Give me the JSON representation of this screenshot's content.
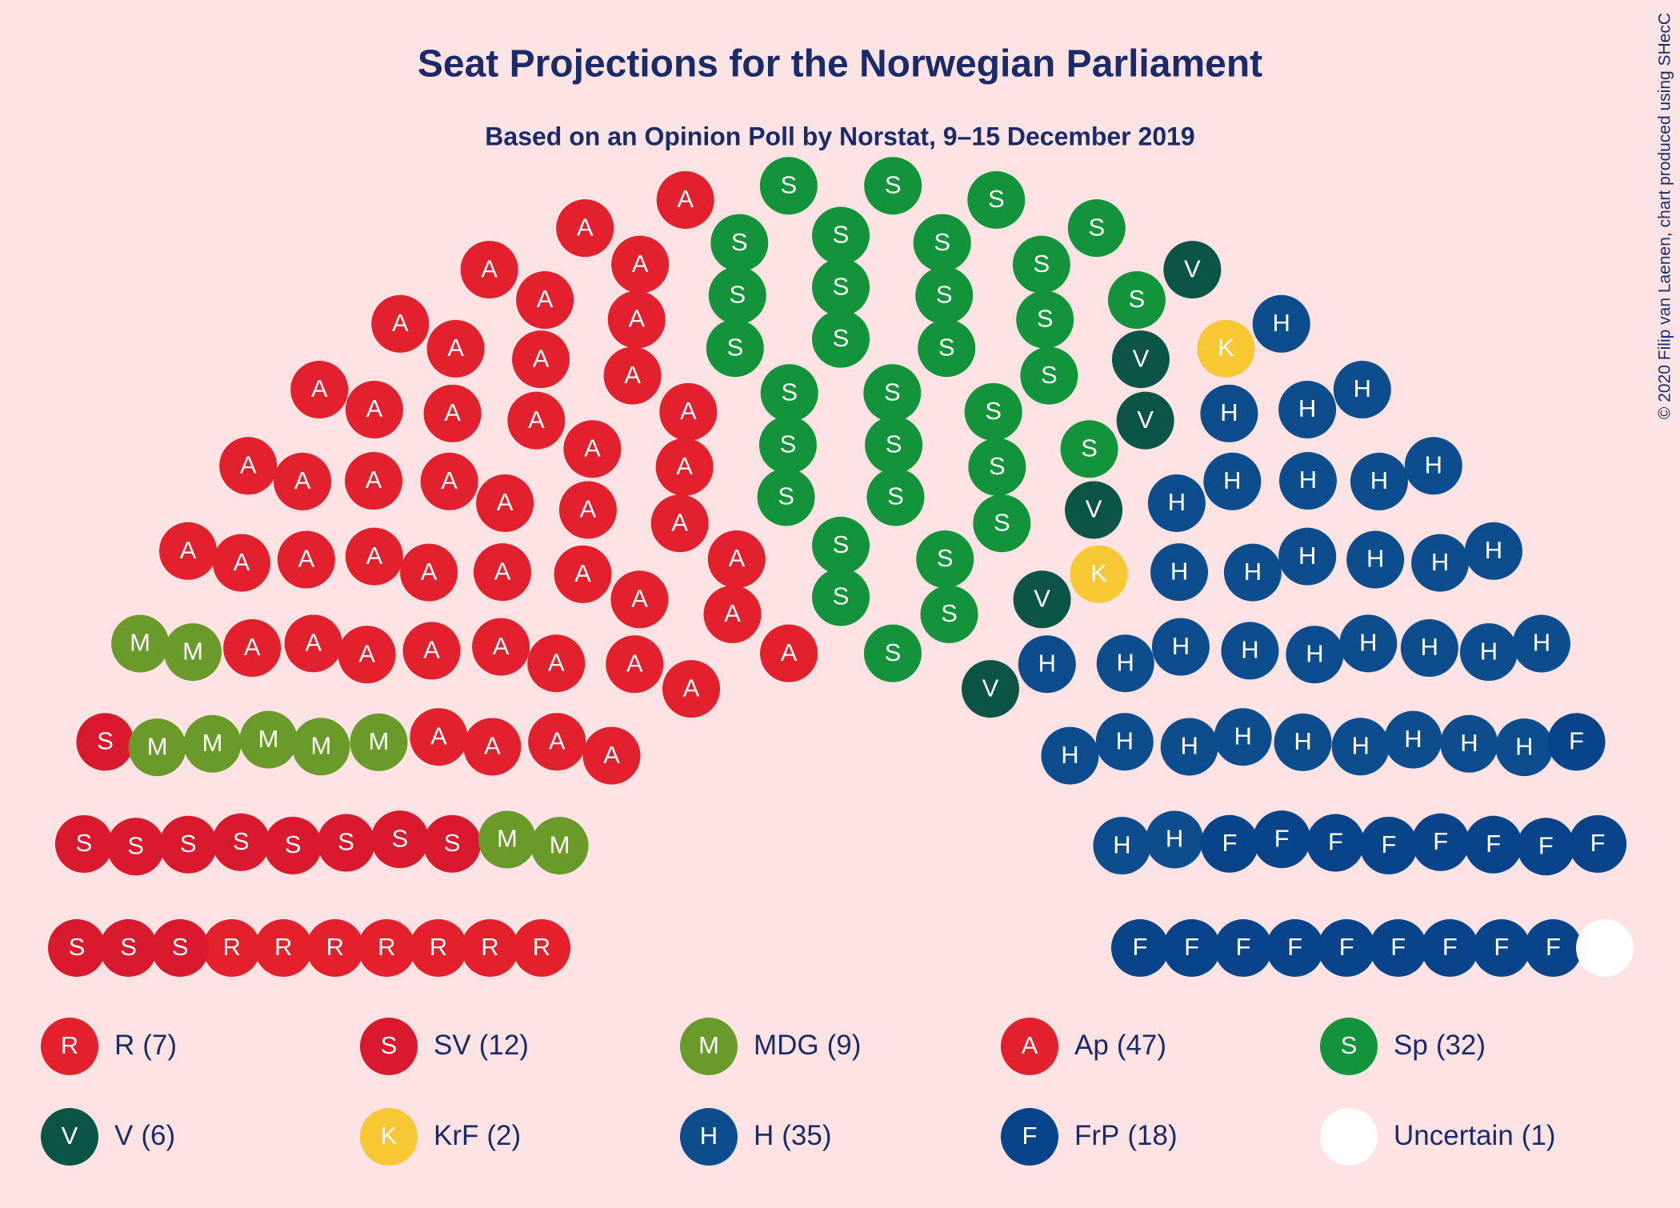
{
  "chart_data": {
    "type": "parliament",
    "title": "Seat Projections for the Norwegian Parliament",
    "subtitle": "Based on an Opinion Poll by Norstat, 9–15 December 2019",
    "credit": "© 2020 Filip van Laenen, chart produced using SHecC",
    "series": [
      {
        "name": "R",
        "letter": "R",
        "color": "#e3202b",
        "value": 7,
        "value_label": "(7)"
      },
      {
        "name": "SV",
        "letter": "S",
        "color": "#d91a2e",
        "value": 12,
        "value_label": "(12)"
      },
      {
        "name": "MDG",
        "letter": "M",
        "color": "#6a9a29",
        "value": 9,
        "value_label": "(9)"
      },
      {
        "name": "Ap",
        "letter": "A",
        "color": "#e3212e",
        "value": 47,
        "value_label": "(47)"
      },
      {
        "name": "Sp",
        "letter": "S",
        "color": "#14943a",
        "value": 32,
        "value_label": "(32)"
      },
      {
        "name": "V",
        "letter": "V",
        "color": "#0c5446",
        "value": 6,
        "value_label": "(6)"
      },
      {
        "name": "KrF",
        "letter": "K",
        "color": "#f7c734",
        "value": 2,
        "value_label": "(2)"
      },
      {
        "name": "H",
        "letter": "H",
        "color": "#0d4d8e",
        "value": 35,
        "value_label": "(35)"
      },
      {
        "name": "FrP",
        "letter": "F",
        "color": "#09438a",
        "value": 18,
        "value_label": "(18)"
      },
      {
        "name": "Uncertain",
        "letter": null,
        "color": "#ffffff",
        "value": 1,
        "value_label": "(1)"
      }
    ]
  }
}
